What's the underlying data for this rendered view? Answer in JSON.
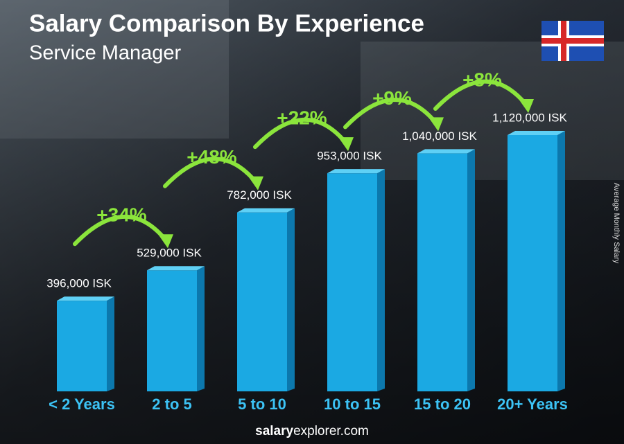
{
  "chart_data": {
    "type": "bar",
    "title": "Salary Comparison By Experience",
    "subtitle": "Service Manager",
    "y_label": "Average Monthly Salary",
    "categories": [
      "< 2 Years",
      "2 to 5",
      "5 to 10",
      "10 to 15",
      "15 to 20",
      "20+ Years"
    ],
    "values": [
      396000,
      529000,
      782000,
      953000,
      1040000,
      1120000
    ],
    "value_labels": [
      "396,000 ISK",
      "529,000 ISK",
      "782,000 ISK",
      "953,000 ISK",
      "1,040,000 ISK",
      "1,120,000 ISK"
    ],
    "color": "#1ba9e3",
    "changes": [
      "+34%",
      "+48%",
      "+22%",
      "+9%",
      "+8%"
    ],
    "change_color": "#8be53c",
    "source": [
      "salary",
      "explorer.com"
    ]
  }
}
